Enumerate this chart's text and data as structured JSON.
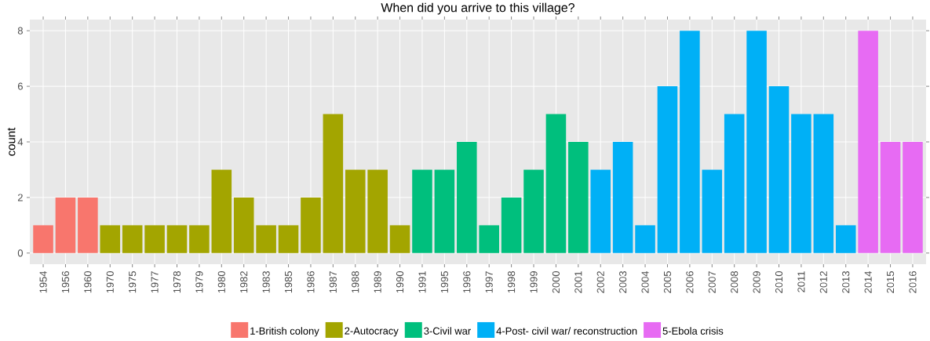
{
  "chart_data": {
    "type": "bar",
    "title": "When did you arrive to this village?",
    "ylabel": "count",
    "categories": [
      "1954",
      "1956",
      "1960",
      "1970",
      "1975",
      "1977",
      "1978",
      "1979",
      "1980",
      "1982",
      "1983",
      "1985",
      "1986",
      "1987",
      "1988",
      "1989",
      "1990",
      "1991",
      "1995",
      "1996",
      "1997",
      "1998",
      "1999",
      "2000",
      "2001",
      "2002",
      "2003",
      "2004",
      "2005",
      "2006",
      "2007",
      "2008",
      "2009",
      "2010",
      "2011",
      "2012",
      "2013",
      "2014",
      "2015",
      "2016"
    ],
    "series": [
      {
        "name": "1-British colony",
        "color": "#f8766d",
        "values": [
          1,
          2,
          2,
          null,
          null,
          null,
          null,
          null,
          null,
          null,
          null,
          null,
          null,
          null,
          null,
          null,
          null,
          null,
          null,
          null,
          null,
          null,
          null,
          null,
          null,
          null,
          null,
          null,
          null,
          null,
          null,
          null,
          null,
          null,
          null,
          null,
          null,
          null,
          null,
          null
        ]
      },
      {
        "name": "2-Autocracy",
        "color": "#a3a500",
        "values": [
          null,
          null,
          null,
          1,
          1,
          1,
          1,
          1,
          3,
          2,
          1,
          1,
          2,
          5,
          3,
          3,
          1,
          null,
          null,
          null,
          null,
          null,
          null,
          null,
          null,
          null,
          null,
          null,
          null,
          null,
          null,
          null,
          null,
          null,
          null,
          null,
          null,
          null,
          null,
          null
        ]
      },
      {
        "name": "3-Civil war",
        "color": "#00bf7d",
        "values": [
          null,
          null,
          null,
          null,
          null,
          null,
          null,
          null,
          null,
          null,
          null,
          null,
          null,
          null,
          null,
          null,
          null,
          3,
          3,
          4,
          1,
          2,
          3,
          5,
          4,
          null,
          null,
          null,
          null,
          null,
          null,
          null,
          null,
          null,
          null,
          null,
          null,
          null,
          null,
          null
        ]
      },
      {
        "name": "4-Post- civil war/ reconstruction",
        "color": "#00b0f6",
        "values": [
          null,
          null,
          null,
          null,
          null,
          null,
          null,
          null,
          null,
          null,
          null,
          null,
          null,
          null,
          null,
          null,
          null,
          null,
          null,
          null,
          null,
          null,
          null,
          null,
          null,
          3,
          4,
          1,
          6,
          8,
          3,
          5,
          8,
          6,
          5,
          5,
          1,
          null,
          null,
          null
        ]
      },
      {
        "name": "5-Ebola crisis",
        "color": "#e76bf3",
        "values": [
          null,
          null,
          null,
          null,
          null,
          null,
          null,
          null,
          null,
          null,
          null,
          null,
          null,
          null,
          null,
          null,
          null,
          null,
          null,
          null,
          null,
          null,
          null,
          null,
          null,
          null,
          null,
          null,
          null,
          null,
          null,
          null,
          null,
          null,
          null,
          null,
          null,
          8,
          4,
          4
        ]
      }
    ],
    "ylim": [
      -0.4,
      8.4
    ],
    "yticks": [
      0,
      2,
      4,
      6,
      8
    ],
    "grid": true,
    "legend": "bottom"
  }
}
